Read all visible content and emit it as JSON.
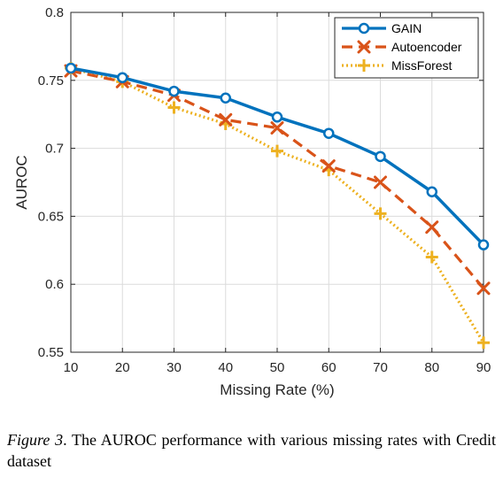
{
  "chart_data": {
    "type": "line",
    "xlabel": "Missing Rate (%)",
    "ylabel": "AUROC",
    "x": [
      10,
      20,
      30,
      40,
      50,
      60,
      70,
      80,
      90
    ],
    "xlim": [
      10,
      90
    ],
    "ylim": [
      0.55,
      0.8
    ],
    "x_ticks": [
      "10",
      "20",
      "30",
      "40",
      "50",
      "60",
      "70",
      "80",
      "90"
    ],
    "y_ticks": [
      "0.55",
      "0.6",
      "0.65",
      "0.7",
      "0.75",
      "0.8"
    ],
    "grid": true,
    "legend_position": "top-right",
    "series": [
      {
        "name": "GAIN",
        "color": "#0072BD",
        "line_style": "solid",
        "marker": "circle",
        "values": [
          0.759,
          0.752,
          0.742,
          0.737,
          0.723,
          0.711,
          0.694,
          0.668,
          0.629
        ]
      },
      {
        "name": "Autoencoder",
        "color": "#D95319",
        "line_style": "dashed",
        "marker": "x",
        "values": [
          0.757,
          0.749,
          0.739,
          0.721,
          0.715,
          0.687,
          0.675,
          0.642,
          0.597
        ]
      },
      {
        "name": "MissForest",
        "color": "#EDB120",
        "line_style": "dotted",
        "marker": "plus",
        "values": [
          0.759,
          0.749,
          0.73,
          0.718,
          0.698,
          0.684,
          0.652,
          0.62,
          0.557
        ]
      }
    ]
  },
  "caption": {
    "label": "Figure 3",
    "text": ". The AUROC performance with various missing rates with Credit dataset"
  }
}
